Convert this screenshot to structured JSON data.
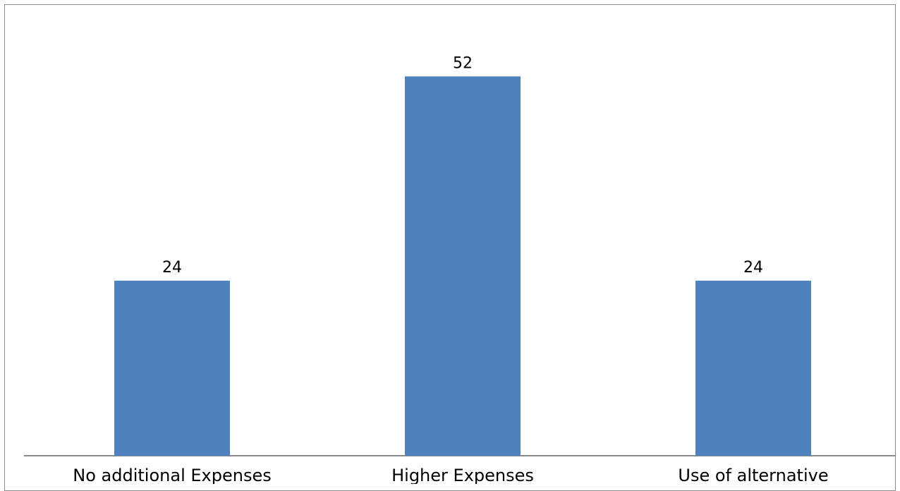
{
  "chart_data": {
    "type": "bar",
    "title": "",
    "xlabel": "",
    "ylabel": "",
    "categories": [
      "No additional Expenses",
      "Higher Expenses",
      "Use of alternative"
    ],
    "values": [
      24,
      52,
      24
    ],
    "data_labels": [
      "24",
      "52",
      "24"
    ],
    "ylim": [
      0,
      60
    ],
    "grid": false,
    "legend": "none",
    "bar_color": "#4f81bd",
    "axis_color": "#8c8c8c"
  }
}
